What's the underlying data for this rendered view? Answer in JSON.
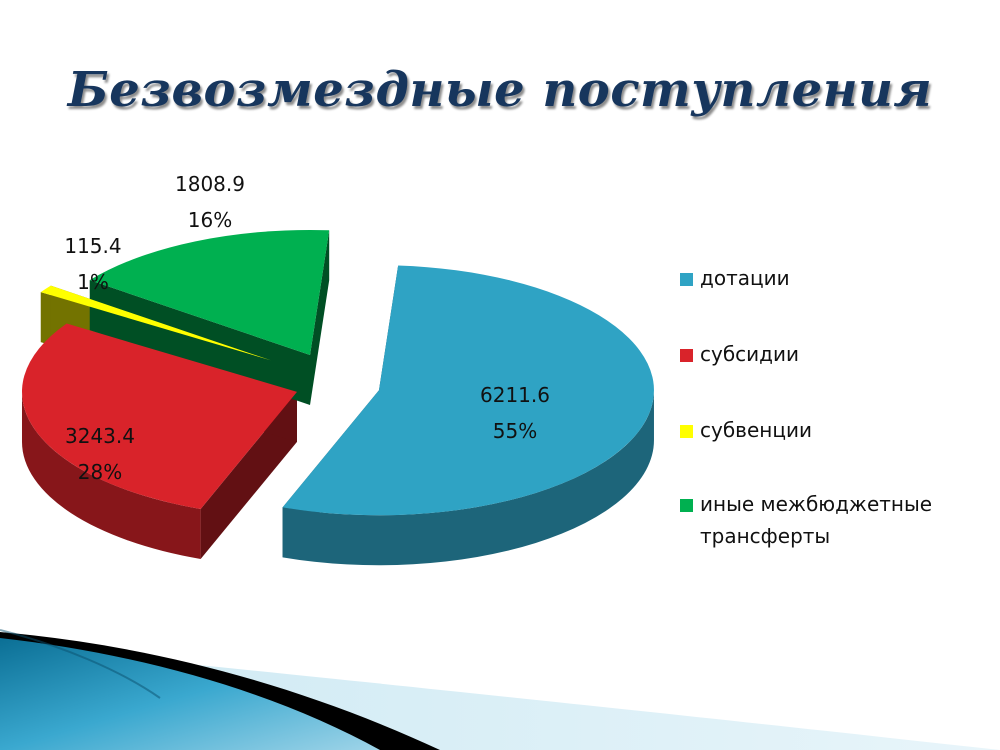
{
  "title": "Безвозмездные поступления",
  "chart_data": {
    "type": "pie",
    "title": "Безвозмездные поступления",
    "categories": [
      "дотации",
      "субсидии",
      "субвенции",
      "иные межбюджетные трансферты"
    ],
    "values": [
      6211.6,
      3243.4,
      115.4,
      1808.9
    ],
    "percent_labels": [
      "55%",
      "28%",
      "1%",
      "16%"
    ],
    "value_labels": [
      "6211.6",
      "3243.4",
      "115.4",
      "1808.9"
    ],
    "colors": [
      "#2fa3c4",
      "#d9232a",
      "#ffff00",
      "#00b050"
    ],
    "exploded": true,
    "three_d": true,
    "legend_position": "right"
  }
}
